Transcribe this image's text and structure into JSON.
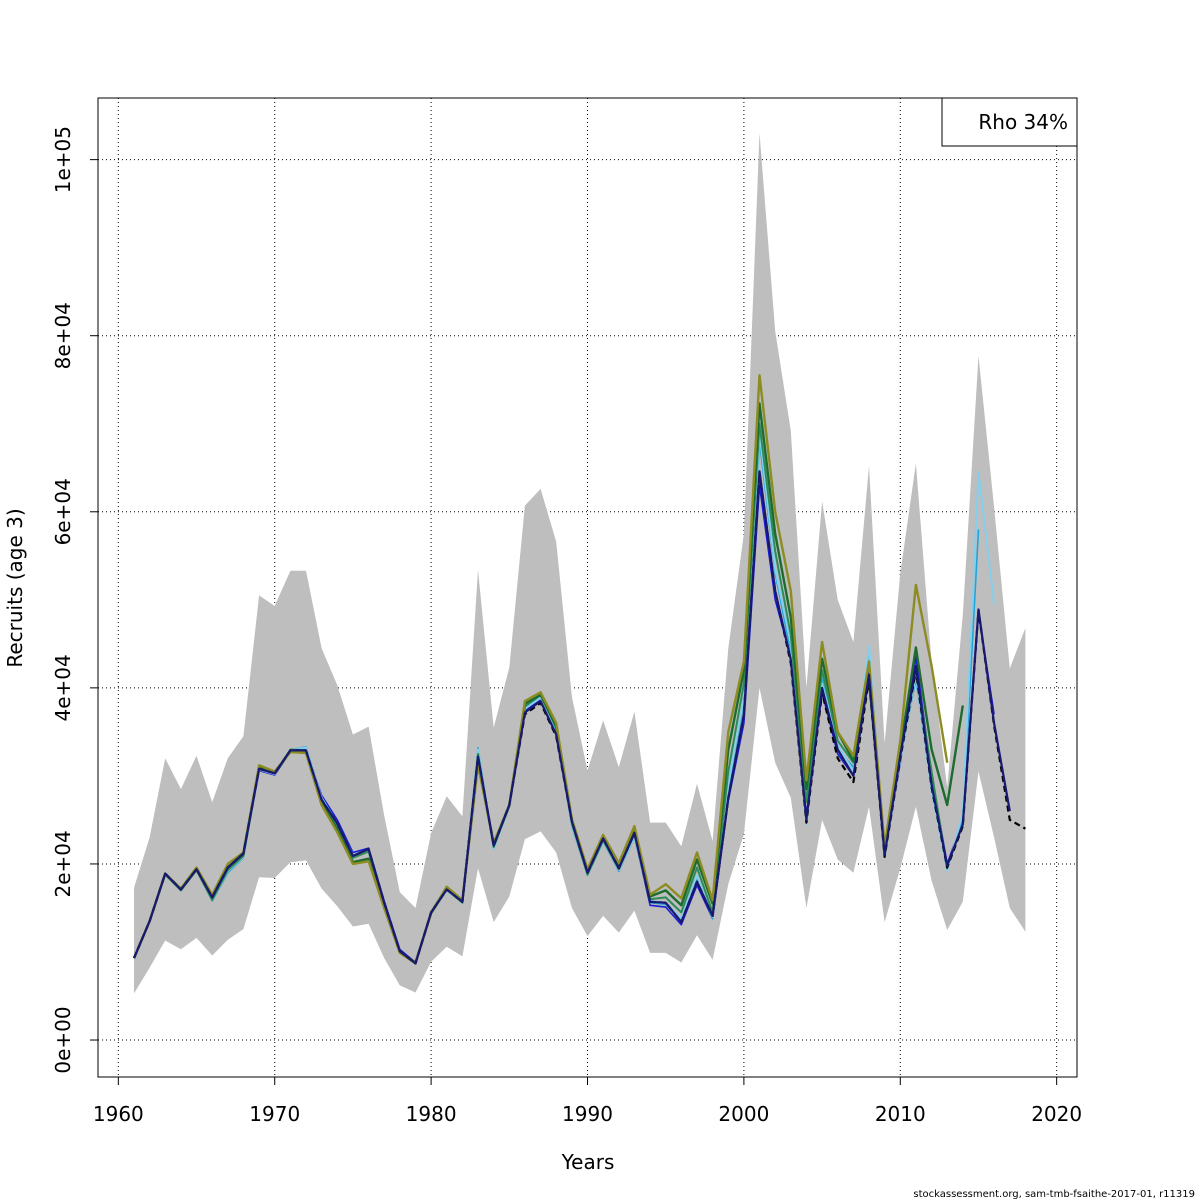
{
  "chart_data": {
    "type": "line",
    "xlabel": "Years",
    "ylabel": "Recruits (age 3)",
    "xlim": [
      1958.7,
      2021.3
    ],
    "ylim": [
      -4200,
      107000
    ],
    "x_ticks": [
      1960,
      1970,
      1980,
      1990,
      2000,
      2010,
      2020
    ],
    "x_tick_labels": [
      "1960",
      "1970",
      "1980",
      "1990",
      "2000",
      "2010",
      "2020"
    ],
    "y_ticks": [
      0,
      20000,
      40000,
      60000,
      80000,
      100000
    ],
    "y_tick_labels": [
      "0e+00",
      "2e+04",
      "4e+04",
      "6e+04",
      "8e+04",
      "1e+05"
    ],
    "grid": true,
    "legend": {
      "position": "top-right",
      "text": "Rho 34%"
    },
    "footer": "stockassessment.org, sam-tmb-fsaithe-2017-01, r11319",
    "band": {
      "color": "#bebebe",
      "x": [
        1961,
        1962,
        1963,
        1964,
        1965,
        1966,
        1967,
        1968,
        1969,
        1970,
        1971,
        1972,
        1973,
        1974,
        1975,
        1976,
        1977,
        1978,
        1979,
        1980,
        1981,
        1982,
        1983,
        1984,
        1985,
        1986,
        1987,
        1988,
        1989,
        1990,
        1991,
        1992,
        1993,
        1994,
        1995,
        1996,
        1997,
        1998,
        1999,
        2000,
        2001,
        2002,
        2003,
        2004,
        2005,
        2006,
        2007,
        2008,
        2009,
        2010,
        2011,
        2012,
        2013,
        2014,
        2015,
        2016,
        2017,
        2018
      ],
      "upper": [
        17300,
        23000,
        32000,
        28500,
        32300,
        27000,
        32000,
        34500,
        50500,
        49300,
        53300,
        53300,
        44500,
        40300,
        34700,
        35600,
        25500,
        16800,
        15000,
        23500,
        27700,
        25400,
        53400,
        35500,
        42300,
        60700,
        62600,
        56600,
        39000,
        30600,
        36300,
        31000,
        37300,
        24700,
        24700,
        22000,
        29100,
        22600,
        44500,
        57500,
        103000,
        80500,
        69200,
        40000,
        61200,
        50000,
        45200,
        65200,
        33700,
        53000,
        65500,
        42900,
        28700,
        48300,
        77700,
        60500,
        42200,
        46800
      ],
      "lower": [
        5300,
        8200,
        11300,
        10300,
        11600,
        9600,
        11400,
        12600,
        18500,
        18400,
        20200,
        20400,
        17200,
        15200,
        12900,
        13200,
        9300,
        6200,
        5400,
        8900,
        10600,
        9500,
        19500,
        13400,
        16300,
        22800,
        23700,
        21300,
        15000,
        11800,
        14100,
        12200,
        14700,
        9900,
        9900,
        8800,
        11900,
        9100,
        17700,
        23400,
        40000,
        31500,
        27500,
        15000,
        25000,
        20500,
        19000,
        26500,
        13400,
        19500,
        26500,
        18100,
        12500,
        15700,
        30500,
        23000,
        15000,
        12300
      ]
    },
    "series": [
      {
        "color": "#000000",
        "dashed": true,
        "width": 2.2,
        "x": [
          1961,
          1962,
          1963,
          1964,
          1965,
          1966,
          1967,
          1968,
          1969,
          1970,
          1971,
          1972,
          1973,
          1974,
          1975,
          1976,
          1977,
          1978,
          1979,
          1980,
          1981,
          1982,
          1983,
          1984,
          1985,
          1986,
          1987,
          1988,
          1989,
          1990,
          1991,
          1992,
          1993,
          1994,
          1995,
          1996,
          1997,
          1998,
          1999,
          2000,
          2001,
          2002,
          2003,
          2004,
          2005,
          2006,
          2007,
          2008,
          2009,
          2010,
          2011,
          2012,
          2013,
          2014,
          2015,
          2016,
          2017,
          2018
        ],
        "y": [
          9300,
          13500,
          18900,
          17100,
          19400,
          16200,
          19600,
          21200,
          30800,
          30300,
          32900,
          32900,
          27300,
          24600,
          20900,
          21700,
          15600,
          10100,
          8700,
          14500,
          17100,
          15700,
          32200,
          22100,
          26700,
          37000,
          38300,
          34500,
          24800,
          19000,
          22900,
          19500,
          23500,
          15700,
          15600,
          13400,
          18000,
          14100,
          27500,
          37000,
          64500,
          51000,
          42800,
          24700,
          39500,
          32000,
          29300,
          41000,
          20800,
          32000,
          42000,
          28700,
          19600,
          24300,
          48800,
          35700,
          25000,
          24000
        ]
      },
      {
        "color": "#191970",
        "dashed": false,
        "width": 2.2,
        "x": [
          1961,
          1962,
          1963,
          1964,
          1965,
          1966,
          1967,
          1968,
          1969,
          1970,
          1971,
          1972,
          1973,
          1974,
          1975,
          1976,
          1977,
          1978,
          1979,
          1980,
          1981,
          1982,
          1983,
          1984,
          1985,
          1986,
          1987,
          1988,
          1989,
          1990,
          1991,
          1992,
          1993,
          1994,
          1995,
          1996,
          1997,
          1998,
          1999,
          2000,
          2001,
          2002,
          2003,
          2004,
          2005,
          2006,
          2007,
          2008,
          2009,
          2010,
          2011,
          2012,
          2013,
          2014,
          2015,
          2016,
          2017
        ],
        "y": [
          9300,
          13500,
          18900,
          17100,
          19400,
          16200,
          19600,
          21200,
          30800,
          30300,
          32900,
          32900,
          27300,
          24600,
          20900,
          21700,
          15600,
          10100,
          8700,
          14500,
          17100,
          15700,
          32200,
          22100,
          26700,
          37200,
          38500,
          34700,
          24800,
          19000,
          22900,
          19500,
          23500,
          15700,
          15600,
          13400,
          18000,
          14100,
          27500,
          37000,
          64600,
          51000,
          43200,
          25000,
          40000,
          33000,
          30000,
          41500,
          21000,
          32300,
          42500,
          29000,
          19800,
          24500,
          48900,
          36000,
          26000
        ]
      },
      {
        "color": "#1c1cd4",
        "dashed": false,
        "width": 1.6,
        "x": [
          1961,
          1962,
          1963,
          1964,
          1965,
          1966,
          1967,
          1968,
          1969,
          1970,
          1971,
          1972,
          1973,
          1974,
          1975,
          1976,
          1977,
          1978,
          1979,
          1980,
          1981,
          1982,
          1983,
          1984,
          1985,
          1986,
          1987,
          1988,
          1989,
          1990,
          1991,
          1992,
          1993,
          1994,
          1995,
          1996,
          1997,
          1998,
          1999,
          2000,
          2001,
          2002,
          2003,
          2004,
          2005,
          2006,
          2007,
          2008,
          2009,
          2010,
          2011,
          2012,
          2013,
          2014,
          2015,
          2016
        ],
        "y": [
          9300,
          13500,
          18800,
          17000,
          19300,
          16000,
          19400,
          21000,
          30600,
          30100,
          32800,
          33000,
          27800,
          25000,
          21300,
          21800,
          15800,
          10300,
          8800,
          14400,
          17200,
          15600,
          32700,
          21800,
          26500,
          37400,
          38600,
          35000,
          24600,
          18900,
          22700,
          19200,
          23200,
          15300,
          15100,
          13100,
          17600,
          13800,
          27200,
          36000,
          63000,
          50000,
          43500,
          25500,
          39500,
          32500,
          30000,
          42000,
          21000,
          31500,
          43500,
          30000,
          20000,
          25000,
          48500,
          37000
        ]
      },
      {
        "color": "#23a4d8",
        "dashed": false,
        "width": 1.6,
        "x": [
          1961,
          1962,
          1963,
          1964,
          1965,
          1966,
          1967,
          1968,
          1969,
          1970,
          1971,
          1972,
          1973,
          1974,
          1975,
          1976,
          1977,
          1978,
          1979,
          1980,
          1981,
          1982,
          1983,
          1984,
          1985,
          1986,
          1987,
          1988,
          1989,
          1990,
          1991,
          1992,
          1993,
          1994,
          1995,
          1996,
          1997,
          1998,
          1999,
          2000,
          2001,
          2002,
          2003,
          2004,
          2005,
          2006,
          2007,
          2008,
          2009,
          2010,
          2011,
          2012,
          2013,
          2014,
          2015
        ],
        "y": [
          9300,
          13500,
          18800,
          17000,
          19300,
          15800,
          19000,
          20700,
          30700,
          30300,
          33000,
          33300,
          27600,
          24600,
          21000,
          21500,
          15500,
          10000,
          8700,
          14400,
          17000,
          15600,
          33200,
          21700,
          26500,
          37700,
          39000,
          35000,
          24200,
          18700,
          22500,
          19200,
          23000,
          15600,
          15400,
          13600,
          18400,
          13800,
          28500,
          38500,
          68000,
          53000,
          44000,
          24800,
          41000,
          33000,
          31000,
          44300,
          21000,
          32000,
          41000,
          28500,
          19500,
          25000,
          58000
        ]
      },
      {
        "color": "#87ceeb",
        "dashed": false,
        "width": 2.0,
        "x": [
          1961,
          1962,
          1963,
          1964,
          1965,
          1966,
          1967,
          1968,
          1969,
          1970,
          1971,
          1972,
          1973,
          1974,
          1975,
          1976,
          1977,
          1978,
          1979,
          1980,
          1981,
          1982,
          1983,
          1984,
          1985,
          1986,
          1987,
          1988,
          1989,
          1990,
          1991,
          1992,
          1993,
          1994,
          1995,
          1996,
          1997,
          1998,
          1999,
          2000,
          2001,
          2002,
          2003,
          2004,
          2005,
          2006,
          2007,
          2008,
          2009,
          2010,
          2011,
          2012,
          2013,
          2014,
          2015,
          2016
        ],
        "y": [
          9300,
          13500,
          18800,
          17000,
          19300,
          15900,
          19200,
          20800,
          30700,
          30200,
          33000,
          33200,
          27500,
          24500,
          21000,
          21600,
          15600,
          10100,
          8700,
          14400,
          17000,
          15600,
          33000,
          21700,
          26500,
          37600,
          38900,
          34800,
          24300,
          18800,
          22600,
          19300,
          23100,
          15800,
          15600,
          13800,
          18700,
          14000,
          29000,
          39000,
          69000,
          53500,
          45000,
          24500,
          40500,
          33500,
          30500,
          44800,
          20800,
          31800,
          41500,
          28300,
          19200,
          25800,
          64500,
          49500
        ]
      },
      {
        "color": "#2e8b57",
        "dashed": false,
        "width": 2.0,
        "x": [
          1961,
          1962,
          1963,
          1964,
          1965,
          1966,
          1967,
          1968,
          1969,
          1970,
          1971,
          1972,
          1973,
          1974,
          1975,
          1976,
          1977,
          1978,
          1979,
          1980,
          1981,
          1982,
          1983,
          1984,
          1985,
          1986,
          1987,
          1988,
          1989,
          1990,
          1991,
          1992,
          1993,
          1994,
          1995,
          1996,
          1997,
          1998,
          1999,
          2000,
          2001,
          2002,
          2003,
          2004,
          2005,
          2006,
          2007,
          2008,
          2009,
          2010,
          2011,
          2012,
          2013
        ],
        "y": [
          9300,
          13500,
          18800,
          17000,
          19300,
          15900,
          19300,
          20900,
          30900,
          30300,
          33000,
          32900,
          27200,
          24400,
          20700,
          21400,
          15500,
          10000,
          8700,
          14400,
          17100,
          15600,
          32500,
          21900,
          26600,
          37900,
          39200,
          35500,
          24600,
          18800,
          22700,
          19400,
          23400,
          16000,
          16200,
          14500,
          19600,
          14500,
          30500,
          40500,
          70000,
          55500,
          46000,
          27000,
          42000,
          34000,
          31500,
          43000,
          21000,
          32500,
          42000,
          30500,
          19400
        ]
      },
      {
        "color": "#1e6b2f",
        "dashed": false,
        "width": 2.4,
        "x": [
          1961,
          1962,
          1963,
          1964,
          1965,
          1966,
          1967,
          1968,
          1969,
          1970,
          1971,
          1972,
          1973,
          1974,
          1975,
          1976,
          1977,
          1978,
          1979,
          1980,
          1981,
          1982,
          1983,
          1984,
          1985,
          1986,
          1987,
          1988,
          1989,
          1990,
          1991,
          1992,
          1993,
          1994,
          1995,
          1996,
          1997,
          1998,
          1999,
          2000,
          2001,
          2002,
          2003,
          2004,
          2005,
          2006,
          2007,
          2008,
          2009,
          2010,
          2011,
          2012,
          2013,
          2014
        ],
        "y": [
          9300,
          13500,
          18900,
          17100,
          19400,
          16300,
          19600,
          21100,
          31000,
          30300,
          32800,
          32700,
          26900,
          23900,
          20200,
          20600,
          15100,
          10000,
          8800,
          14400,
          17200,
          15800,
          31700,
          22200,
          26600,
          38200,
          39200,
          35600,
          24900,
          19100,
          23000,
          19800,
          23800,
          16300,
          17000,
          15300,
          20500,
          15500,
          33000,
          42000,
          72300,
          57500,
          48000,
          28500,
          43300,
          35000,
          31700,
          41000,
          21500,
          33000,
          44600,
          33000,
          26700,
          38000
        ]
      },
      {
        "color": "#8c8c22",
        "dashed": false,
        "width": 2.4,
        "x": [
          1961,
          1962,
          1963,
          1964,
          1965,
          1966,
          1967,
          1968,
          1969,
          1970,
          1971,
          1972,
          1973,
          1974,
          1975,
          1976,
          1977,
          1978,
          1979,
          1980,
          1981,
          1982,
          1983,
          1984,
          1985,
          1986,
          1987,
          1988,
          1989,
          1990,
          1991,
          1992,
          1993,
          1994,
          1995,
          1996,
          1997,
          1998,
          1999,
          2000,
          2001,
          2002,
          2003,
          2004,
          2005,
          2006,
          2007,
          2008,
          2009,
          2010,
          2011,
          2012,
          2013
        ],
        "y": [
          9300,
          13500,
          18900,
          17200,
          19600,
          16500,
          20000,
          21300,
          31200,
          30500,
          32700,
          32600,
          26700,
          23600,
          20000,
          20300,
          15000,
          9900,
          8700,
          14500,
          17400,
          15900,
          31200,
          22400,
          26700,
          38500,
          39500,
          36000,
          25100,
          19400,
          23300,
          20100,
          24300,
          16500,
          17700,
          16100,
          21300,
          15900,
          35000,
          43000,
          75500,
          60000,
          51000,
          29500,
          45200,
          35000,
          32300,
          43000,
          22000,
          34000,
          51700,
          42500,
          31500
        ]
      }
    ]
  }
}
